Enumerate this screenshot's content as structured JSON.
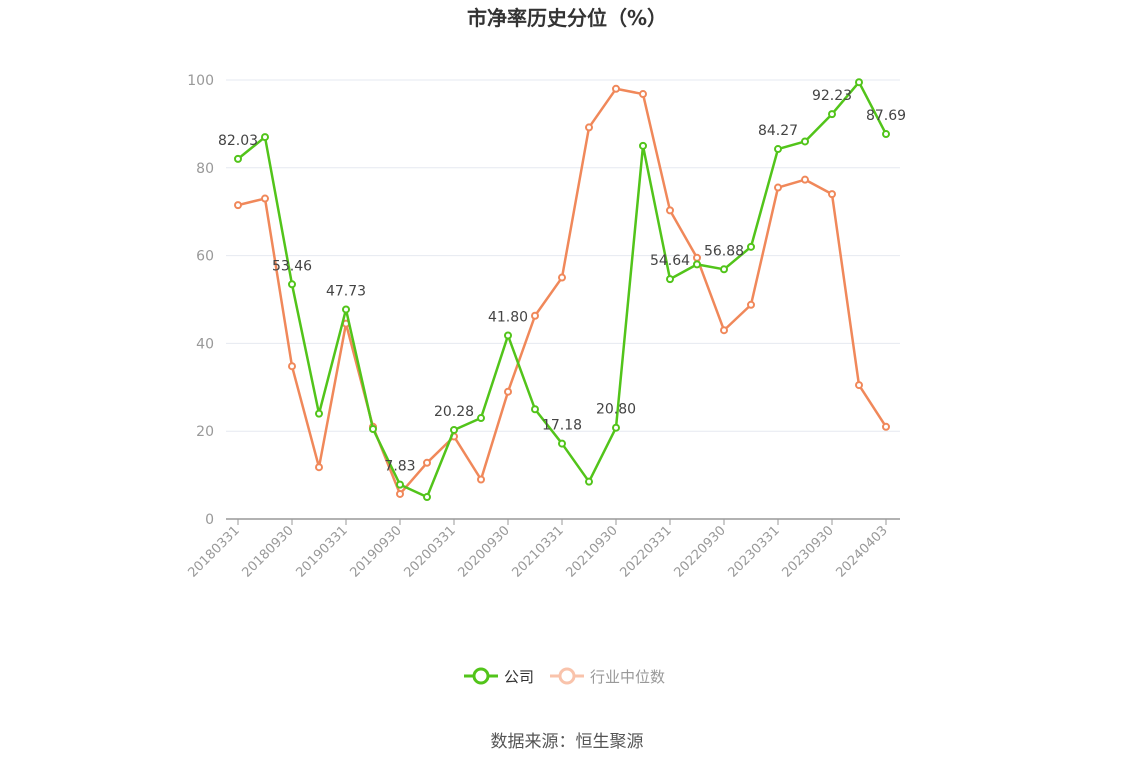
{
  "chart_data": {
    "type": "line",
    "title": "市净率历史分位（%）",
    "source_text": "数据来源：恒生聚源",
    "ylim": [
      0,
      100
    ],
    "yticks": [
      0,
      20,
      40,
      60,
      80,
      100
    ],
    "grid": true,
    "legend_position": "bottom",
    "x": [
      "20180331",
      "20180630",
      "20180930",
      "20181231",
      "20190331",
      "20190630",
      "20190930",
      "20191231",
      "20200331",
      "20200630",
      "20200930",
      "20201231",
      "20210331",
      "20210630",
      "20210930",
      "20211231",
      "20220331",
      "20220630",
      "20220930",
      "20221231",
      "20230331",
      "20230630",
      "20230930",
      "20231231",
      "20240403"
    ],
    "xtick_labels": [
      "20180331",
      "20180930",
      "20190331",
      "20190930",
      "20200331",
      "20200930",
      "20210331",
      "20210930",
      "20220331",
      "20220930",
      "20230331",
      "20230930",
      "20240403"
    ],
    "series": [
      {
        "name": "公司",
        "color": "#52c41a",
        "values": [
          82.03,
          87.0,
          53.46,
          24.0,
          47.73,
          20.5,
          7.83,
          5.0,
          20.28,
          23.0,
          41.8,
          25.0,
          17.18,
          8.5,
          20.8,
          85.0,
          54.64,
          58.0,
          56.88,
          62.0,
          84.27,
          86.0,
          92.23,
          99.5,
          87.69
        ],
        "labels": [
          "82.03",
          "",
          "53.46",
          "",
          "47.73",
          "",
          "7.83",
          "",
          "20.28",
          "",
          "41.80",
          "",
          "17.18",
          "",
          "20.80",
          "",
          "54.64",
          "",
          "56.88",
          "",
          "84.27",
          "",
          "92.23",
          "",
          "87.69"
        ]
      },
      {
        "name": "行业中位数",
        "color": "#f0885a",
        "values": [
          71.5,
          73.0,
          34.8,
          11.8,
          44.5,
          21.0,
          5.7,
          12.8,
          18.8,
          9.0,
          29.0,
          46.3,
          55.0,
          89.2,
          98.0,
          96.8,
          70.3,
          59.5,
          43.0,
          48.8,
          75.5,
          77.3,
          74.0,
          30.5,
          21.0
        ]
      }
    ]
  }
}
